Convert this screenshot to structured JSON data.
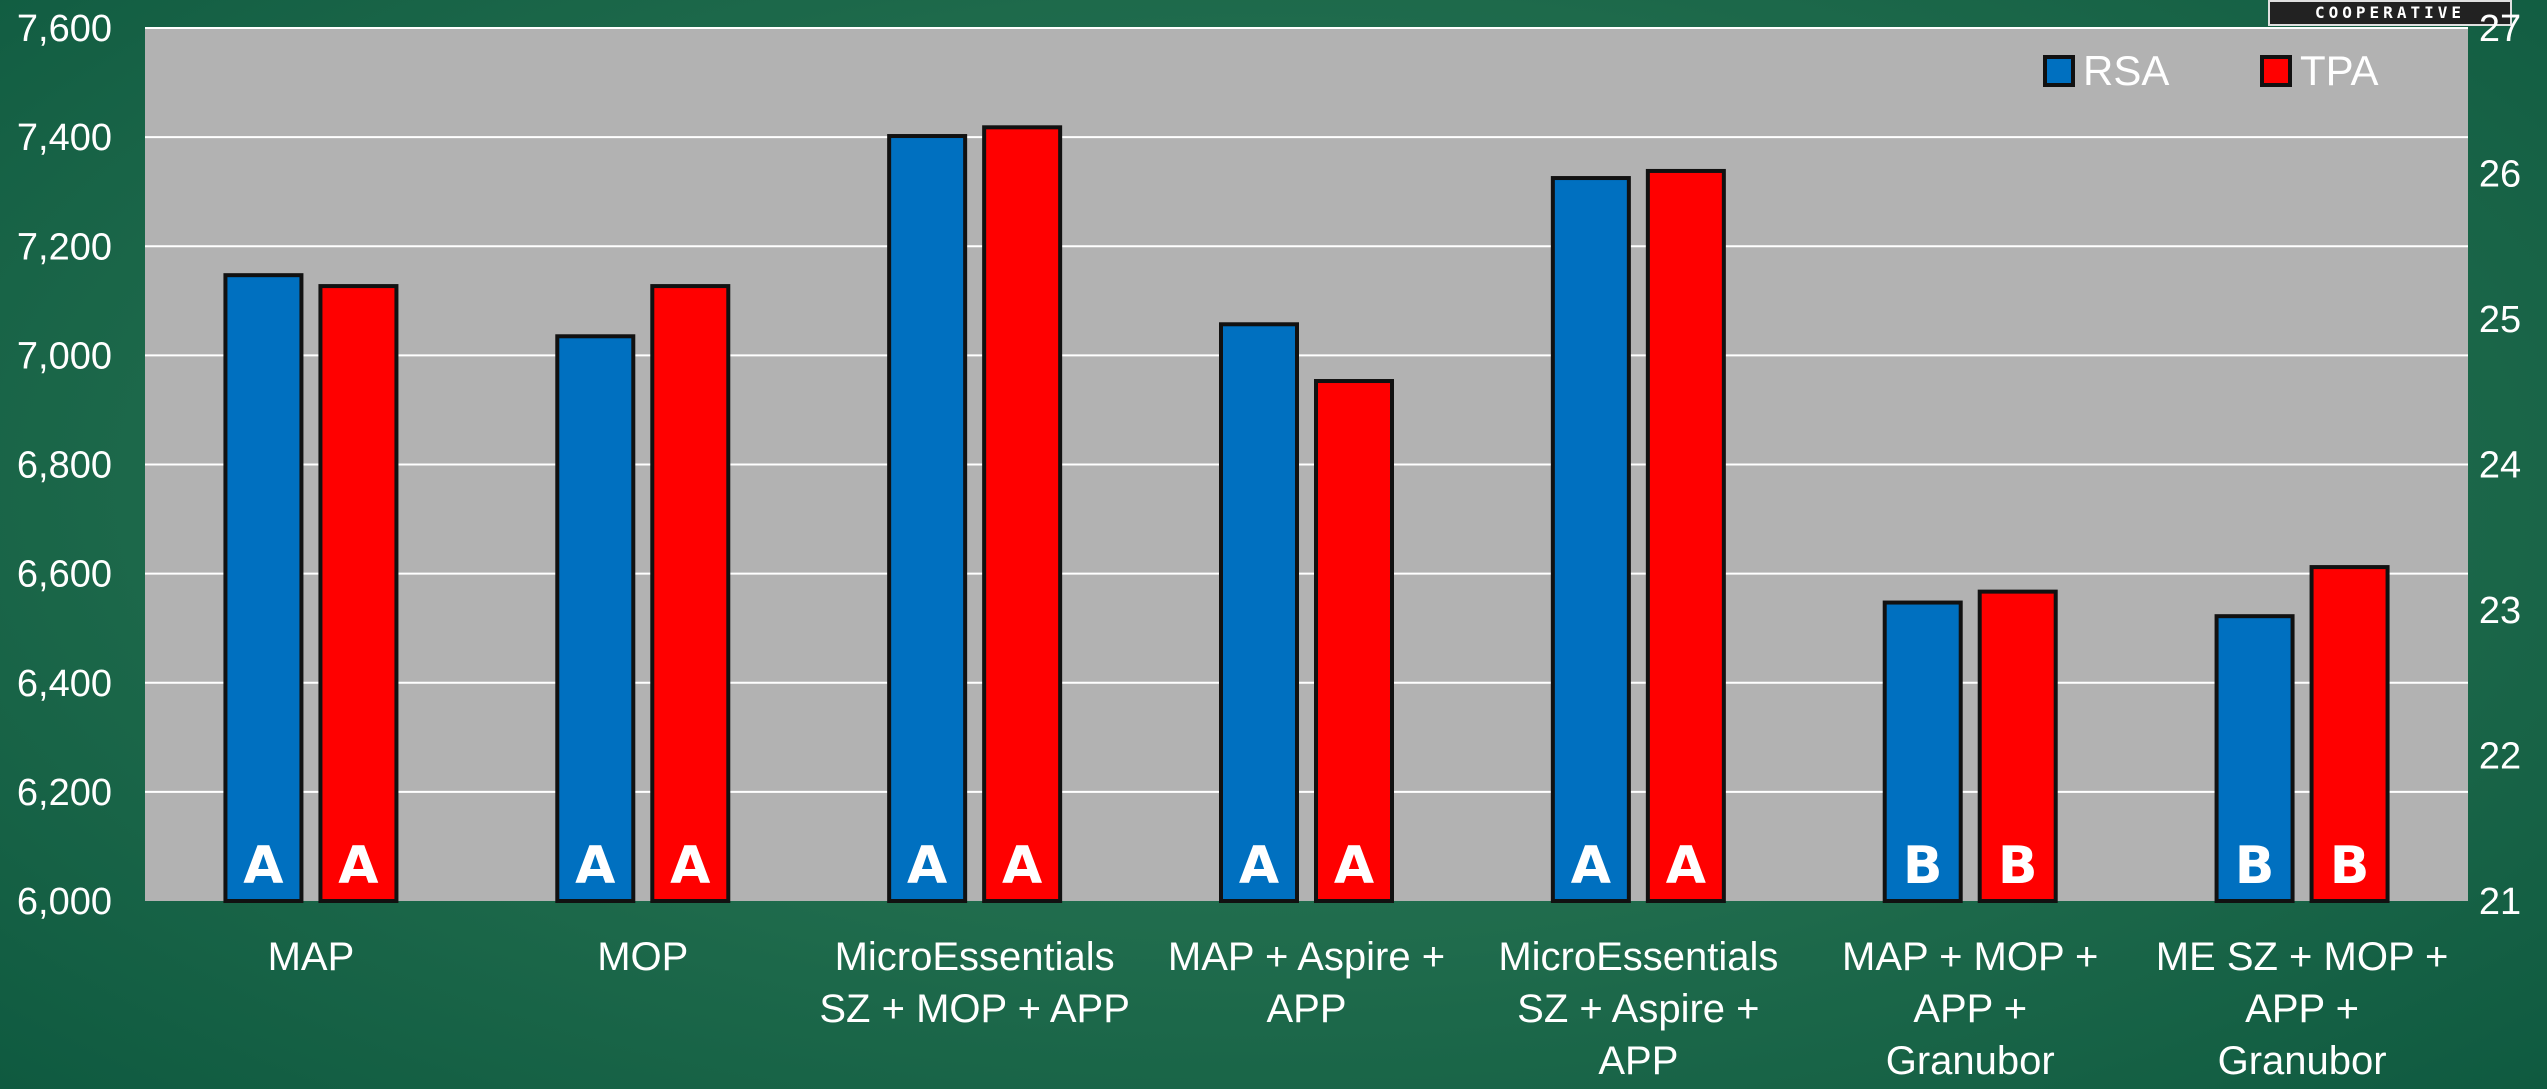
{
  "logo_text": "COOPERATIVE",
  "chart_data": {
    "type": "bar",
    "categories": [
      [
        "MAP"
      ],
      [
        "MOP"
      ],
      [
        "MicroEssentials",
        "SZ + MOP + APP"
      ],
      [
        "MAP + Aspire +",
        "APP"
      ],
      [
        "MicroEssentials",
        "SZ + Aspire +",
        "APP"
      ],
      [
        "MAP + MOP +",
        "APP +",
        "Granubor"
      ],
      [
        "ME SZ + MOP +",
        "APP +",
        "Granubor"
      ]
    ],
    "series": [
      {
        "name": "RSA",
        "color": "#0070c0",
        "values": [
          7147,
          7035,
          7402,
          7057,
          7325,
          6547,
          6522
        ],
        "letters": [
          "A",
          "A",
          "A",
          "A",
          "A",
          "B",
          "B"
        ]
      },
      {
        "name": "TPA",
        "color": "#ff0000",
        "values": [
          7127,
          7127,
          7418,
          6953,
          7338,
          6567,
          6612
        ],
        "letters": [
          "A",
          "A",
          "A",
          "A",
          "A",
          "B",
          "B"
        ]
      }
    ],
    "ylim": [
      6000,
      7600
    ],
    "yticks": [
      "6,000",
      "6,200",
      "6,400",
      "6,600",
      "6,800",
      "7,000",
      "7,200",
      "7,400",
      "7,600"
    ],
    "y2lim": [
      21,
      27
    ],
    "y2ticks": [
      "21",
      "22",
      "23",
      "24",
      "25",
      "26",
      "27"
    ],
    "grid": true,
    "legend": "top-right",
    "colors": {
      "plot_bg": "#b2b2b2",
      "grid": "#ffffff",
      "outline": "#111111"
    }
  }
}
